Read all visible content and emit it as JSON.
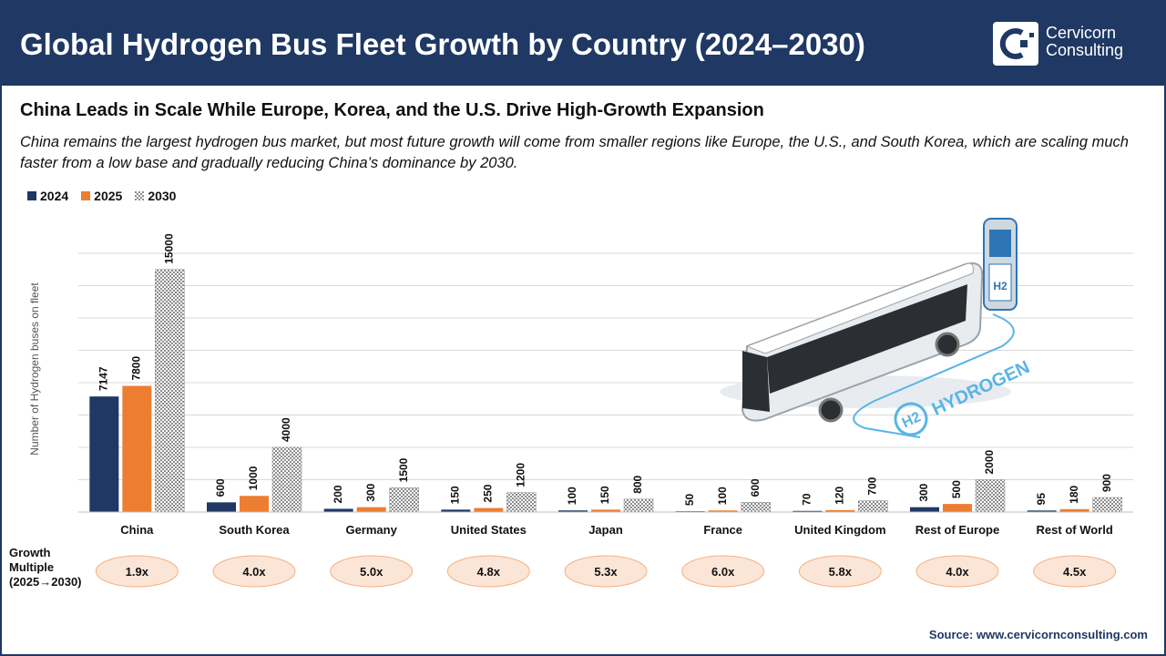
{
  "header": {
    "title": "Global Hydrogen Bus Fleet Growth by Country (2024–2030)",
    "logo_line1": "Cervicorn",
    "logo_line2": "Consulting"
  },
  "subtitle": "China Leads in Scale While Europe, Korea, and the U.S. Drive High-Growth Expansion",
  "description_line1": "China remains the largest hydrogen bus market, but most future growth will come from smaller regions like Europe, the U.S., and South Korea, which are scaling much",
  "description_line2": "faster from a low base and gradually reducing China’s dominance by 2030.",
  "growth_label": [
    "Growth",
    "Multiple",
    "(2025→2030)"
  ],
  "source": "Source: www.cervicornconsulting.com",
  "illustration": {
    "hydrogen_label": "HYDROGEN",
    "h2_label": "H2"
  },
  "chart_data": {
    "type": "bar",
    "ylabel": "Number of Hydrogen buses on fleet",
    "ylim": [
      0,
      16000
    ],
    "grid": true,
    "legend": "top-left",
    "categories": [
      "China",
      "South Korea",
      "Germany",
      "United States",
      "Japan",
      "France",
      "United Kingdom",
      "Rest of Europe",
      "Rest of World"
    ],
    "series": [
      {
        "name": "2024",
        "color": "#1f3864",
        "values": [
          7147,
          600,
          200,
          150,
          100,
          50,
          70,
          300,
          95
        ]
      },
      {
        "name": "2025",
        "color": "#ed7d31",
        "values": [
          7800,
          1000,
          300,
          250,
          150,
          100,
          120,
          500,
          180
        ]
      },
      {
        "name": "2030",
        "color": "#9a9a9a",
        "values": [
          15000,
          4000,
          1500,
          1200,
          800,
          600,
          700,
          2000,
          900
        ]
      }
    ],
    "growth_multiples": [
      "1.9x",
      "4.0x",
      "5.0x",
      "4.8x",
      "5.3x",
      "6.0x",
      "5.8x",
      "4.0x",
      "4.5x"
    ]
  }
}
